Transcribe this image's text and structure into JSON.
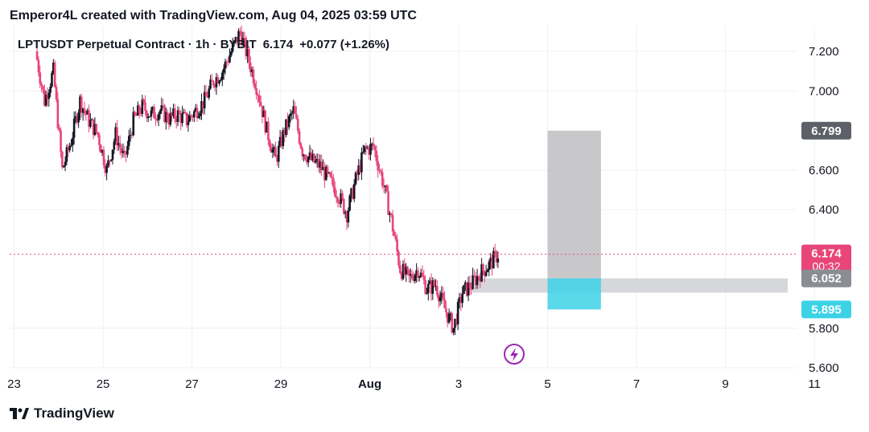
{
  "attribution": "Emperor4L created with TradingView.com, Aug 04, 2025 03:59 UTC",
  "legend": {
    "symbol": "LPTUSDT Perpetual Contract · 1h · BYBIT",
    "price": "6.174",
    "change": "+0.077 (+1.26%)"
  },
  "brand": "TradingView",
  "icons": {
    "flash_marker": "lightning-icon",
    "brand_logo": "tradingview-logo-icon"
  },
  "colors": {
    "up": "#131722",
    "down": "#e8457a",
    "target": "#b5b6b9",
    "entry": "#3cd2e6",
    "range": "#cfd0d3",
    "price_line": "#e8457a"
  },
  "chart_data": {
    "type": "candlestick",
    "y_ticks": [
      "7.200",
      "7.000",
      "6.600",
      "6.400",
      "5.800",
      "5.600"
    ],
    "x_ticks": [
      {
        "label": "23",
        "day": 23
      },
      {
        "label": "25",
        "day": 25
      },
      {
        "label": "27",
        "day": 27
      },
      {
        "label": "29",
        "day": 29
      },
      {
        "label": "Aug",
        "day": 31
      },
      {
        "label": "3",
        "day": 33
      },
      {
        "label": "5",
        "day": 35
      },
      {
        "label": "7",
        "day": 37
      },
      {
        "label": "9",
        "day": 39
      },
      {
        "label": "11",
        "day": 41
      }
    ],
    "ylim": [
      5.6,
      7.33
    ],
    "xlim": [
      22.9,
      40.6
    ],
    "grid": true,
    "price_labels": [
      {
        "text": "6.799",
        "value": 6.799,
        "color": "#5d6066"
      },
      {
        "text": "6.174",
        "sub": "00:32",
        "value": 6.174,
        "color": "#e8457a"
      },
      {
        "text": "6.052",
        "value": 6.052,
        "color": "#8a8d93"
      },
      {
        "text": "5.895",
        "value": 5.895,
        "color": "#3cd2e6"
      }
    ],
    "position": {
      "entry": 6.052,
      "target": 6.799,
      "stop": 5.895,
      "x_start": 35.0,
      "x_end": 36.2
    },
    "range_zone": {
      "top": 6.052,
      "bottom": 5.98,
      "x_start": 33.3,
      "x_end": 40.4
    },
    "last_price": 6.174,
    "waypoints": [
      [
        23.5,
        7.2
      ],
      [
        23.7,
        6.95
      ],
      [
        23.9,
        7.1
      ],
      [
        24.1,
        6.6
      ],
      [
        24.3,
        6.75
      ],
      [
        24.5,
        6.95
      ],
      [
        24.7,
        6.85
      ],
      [
        24.9,
        6.78
      ],
      [
        25.1,
        6.6
      ],
      [
        25.3,
        6.78
      ],
      [
        25.5,
        6.65
      ],
      [
        25.7,
        6.85
      ],
      [
        25.9,
        6.92
      ],
      [
        26.1,
        6.88
      ],
      [
        26.3,
        6.9
      ],
      [
        26.5,
        6.86
      ],
      [
        26.7,
        6.88
      ],
      [
        26.9,
        6.85
      ],
      [
        27.1,
        6.9
      ],
      [
        27.3,
        6.95
      ],
      [
        27.5,
        7.05
      ],
      [
        27.7,
        7.1
      ],
      [
        27.9,
        7.2
      ],
      [
        28.1,
        7.3
      ],
      [
        28.3,
        7.15
      ],
      [
        28.5,
        7.0
      ],
      [
        28.7,
        6.8
      ],
      [
        28.9,
        6.65
      ],
      [
        29.1,
        6.8
      ],
      [
        29.3,
        6.9
      ],
      [
        29.5,
        6.7
      ],
      [
        29.7,
        6.65
      ],
      [
        29.9,
        6.62
      ],
      [
        30.1,
        6.55
      ],
      [
        30.3,
        6.48
      ],
      [
        30.5,
        6.38
      ],
      [
        30.7,
        6.55
      ],
      [
        30.9,
        6.7
      ],
      [
        31.1,
        6.72
      ],
      [
        31.3,
        6.55
      ],
      [
        31.5,
        6.35
      ],
      [
        31.7,
        6.1
      ],
      [
        31.9,
        6.05
      ],
      [
        32.1,
        6.1
      ],
      [
        32.3,
        6.0
      ],
      [
        32.5,
        6.02
      ],
      [
        32.7,
        5.9
      ],
      [
        32.9,
        5.8
      ],
      [
        33.1,
        5.98
      ],
      [
        33.3,
        6.02
      ],
      [
        33.5,
        6.08
      ],
      [
        33.7,
        6.12
      ],
      [
        33.9,
        6.174
      ]
    ]
  }
}
